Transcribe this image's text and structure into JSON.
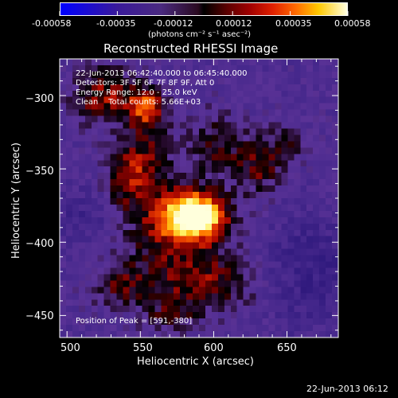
{
  "colorbar": {
    "ticks": [
      "-0.00058",
      "-0.00035",
      "-0.00012",
      "0.00012",
      "0.00035",
      "0.00058"
    ],
    "units": "(photons cm⁻² s⁻¹ asec⁻²)",
    "colors": [
      "#0000ff",
      "#3a1a9a",
      "#4a2a80",
      "#000000",
      "#a00000",
      "#ff6a00",
      "#ffc800",
      "#ffffe0"
    ]
  },
  "chart_data": {
    "type": "heatmap",
    "title": "Reconstructed RHESSI Image",
    "xlabel": "Heliocentric X (arcsec)",
    "ylabel": "Heliocentric Y (arcsec)",
    "xlim": [
      495,
      685
    ],
    "ylim": [
      -465,
      -275
    ],
    "xticks": [
      500,
      550,
      600,
      650
    ],
    "yticks": [
      -300,
      -350,
      -400,
      -450
    ],
    "x_tick_labels": [
      "500",
      "550",
      "600",
      "650"
    ],
    "y_tick_labels": [
      "−300",
      "−350",
      "−400",
      "−450"
    ],
    "value_range": [
      -0.00058,
      0.00058
    ],
    "peak": [
      591,
      -380
    ],
    "annotations": {
      "time": "22-Jun-2013 06:42:40.000 to 06:45:40.000",
      "detectors": "Detectors: 3F 5F 6F 7F 8F 9F, Att 0",
      "energy": "Energy Range: 12.0 - 25.0 keV",
      "clean": "Clean    Total counts: 5.66E+03",
      "peak_label": "Position of Peak = [591,-380]"
    }
  },
  "footer": {
    "date": "22-Jun-2013 06:12"
  }
}
